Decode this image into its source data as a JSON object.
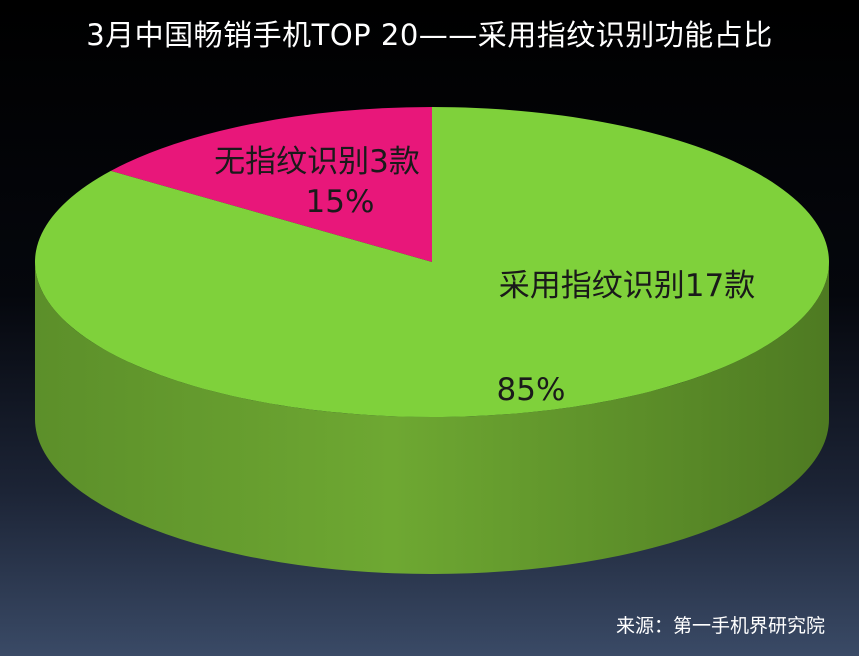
{
  "chart_data": {
    "type": "pie",
    "title": "3月中国畅销手机TOP 20——采用指纹识别功能占比",
    "categories": [
      "无指纹识别3款",
      "采用指纹识别17款"
    ],
    "values": [
      15,
      85
    ],
    "value_labels": [
      "15%",
      "85%"
    ],
    "colors": [
      "#e8177a",
      "#7fd13b"
    ],
    "style": "3d"
  },
  "source": "来源：第一手机界研究院"
}
